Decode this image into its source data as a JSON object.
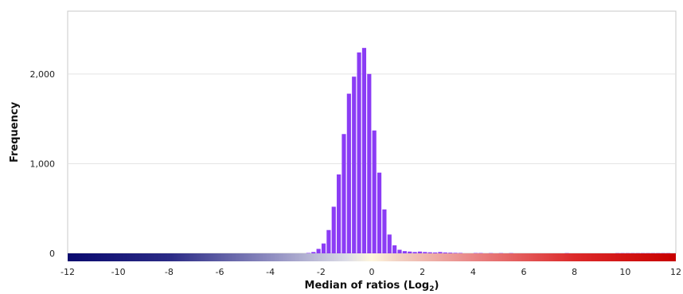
{
  "chart_data": {
    "type": "bar",
    "title": "",
    "xlabel": "Median of ratios (Log",
    "xlabel_subscript": "2",
    "xlabel_suffix": ")",
    "ylabel": "Frequency",
    "xlim": [
      -12,
      12
    ],
    "ylim": [
      0,
      2700
    ],
    "x_ticks": [
      -12,
      -10,
      -8,
      -6,
      -4,
      -2,
      0,
      2,
      4,
      6,
      8,
      10,
      12
    ],
    "x_tick_labels": [
      "-12",
      "-10",
      "-8",
      "-6",
      "-4",
      "-2",
      "0",
      "2",
      "4",
      "6",
      "8",
      "10",
      "12"
    ],
    "y_ticks": [
      0,
      1000,
      2000
    ],
    "y_tick_labels": [
      "0",
      "1,000",
      "2,000"
    ],
    "grid": true,
    "bar_color": "#8b3cf5",
    "colorbar": {
      "from": -12,
      "to": 12,
      "stops": [
        {
          "value": -12,
          "color": "#0a0a6e"
        },
        {
          "value": -8,
          "color": "#2a2a85"
        },
        {
          "value": -4,
          "color": "#8e8cc0"
        },
        {
          "value": -1,
          "color": "#dcdce6"
        },
        {
          "value": 0,
          "color": "#fff6dc"
        },
        {
          "value": 1,
          "color": "#f2d2c4"
        },
        {
          "value": 4,
          "color": "#e98585"
        },
        {
          "value": 8,
          "color": "#dc2a2a"
        },
        {
          "value": 12,
          "color": "#c80000"
        }
      ]
    },
    "bin_width": 0.2,
    "bins": [
      {
        "x": -2.6,
        "y": 5
      },
      {
        "x": -2.4,
        "y": 15
      },
      {
        "x": -2.2,
        "y": 50
      },
      {
        "x": -2.0,
        "y": 110
      },
      {
        "x": -1.8,
        "y": 260
      },
      {
        "x": -1.6,
        "y": 520
      },
      {
        "x": -1.4,
        "y": 880
      },
      {
        "x": -1.2,
        "y": 1330
      },
      {
        "x": -1.0,
        "y": 1780
      },
      {
        "x": -0.8,
        "y": 1970
      },
      {
        "x": -0.6,
        "y": 2240
      },
      {
        "x": -0.4,
        "y": 2290
      },
      {
        "x": -0.2,
        "y": 2000
      },
      {
        "x": 0.0,
        "y": 1370
      },
      {
        "x": 0.2,
        "y": 900
      },
      {
        "x": 0.4,
        "y": 490
      },
      {
        "x": 0.6,
        "y": 210
      },
      {
        "x": 0.8,
        "y": 90
      },
      {
        "x": 1.0,
        "y": 40
      },
      {
        "x": 1.2,
        "y": 25
      },
      {
        "x": 1.4,
        "y": 20
      },
      {
        "x": 1.6,
        "y": 15
      },
      {
        "x": 1.8,
        "y": 20
      },
      {
        "x": 2.0,
        "y": 15
      },
      {
        "x": 2.2,
        "y": 12
      },
      {
        "x": 2.4,
        "y": 10
      },
      {
        "x": 2.6,
        "y": 15
      },
      {
        "x": 2.8,
        "y": 10
      },
      {
        "x": 3.0,
        "y": 8
      },
      {
        "x": 3.2,
        "y": 6
      },
      {
        "x": 3.4,
        "y": 5
      },
      {
        "x": 4.0,
        "y": 4
      },
      {
        "x": 4.2,
        "y": 4
      },
      {
        "x": 4.6,
        "y": 3
      },
      {
        "x": 5.0,
        "y": 3
      },
      {
        "x": 5.4,
        "y": 3
      },
      {
        "x": 7.6,
        "y": 3
      },
      {
        "x": 9.6,
        "y": 3
      },
      {
        "x": 9.8,
        "y": 3
      },
      {
        "x": 10.0,
        "y": 3
      },
      {
        "x": 10.2,
        "y": 3
      },
      {
        "x": 10.4,
        "y": 3
      },
      {
        "x": 10.6,
        "y": 3
      },
      {
        "x": 10.8,
        "y": 3
      },
      {
        "x": 11.0,
        "y": 3
      },
      {
        "x": 11.2,
        "y": 3
      },
      {
        "x": 11.4,
        "y": 3
      },
      {
        "x": 11.6,
        "y": 3
      }
    ]
  }
}
